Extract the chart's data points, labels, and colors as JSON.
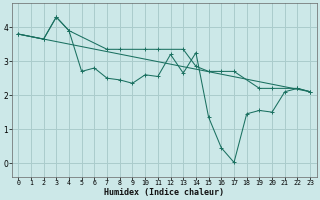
{
  "xlabel": "Humidex (Indice chaleur)",
  "bg_color": "#cce8e8",
  "grid_color": "#aacccc",
  "line_color": "#1a7060",
  "xlim": [
    -0.5,
    23.5
  ],
  "ylim": [
    -0.4,
    4.7
  ],
  "xticks": [
    0,
    1,
    2,
    3,
    4,
    5,
    6,
    7,
    8,
    9,
    10,
    11,
    12,
    13,
    14,
    15,
    16,
    17,
    18,
    19,
    20,
    21,
    22,
    23
  ],
  "yticks": [
    0,
    1,
    2,
    3,
    4
  ],
  "line1_x": [
    0,
    2,
    3,
    4,
    5,
    6,
    7,
    8,
    9,
    10,
    11,
    12,
    13,
    14,
    15,
    16,
    17,
    18,
    19,
    20,
    21,
    22,
    23
  ],
  "line1_y": [
    3.8,
    3.65,
    4.3,
    3.9,
    2.7,
    2.8,
    2.5,
    2.45,
    2.35,
    2.6,
    2.55,
    3.2,
    2.65,
    3.25,
    1.35,
    0.45,
    0.02,
    1.45,
    1.55,
    1.5,
    2.1,
    2.2,
    2.1
  ],
  "line2_x": [
    0,
    2,
    3,
    4,
    4,
    7,
    8,
    10,
    11,
    13,
    14,
    15,
    16,
    17,
    19,
    20,
    22,
    23
  ],
  "line2_y": [
    3.8,
    3.65,
    4.3,
    3.9,
    3.9,
    3.35,
    3.35,
    3.35,
    3.35,
    3.35,
    2.85,
    2.7,
    2.7,
    2.7,
    2.2,
    2.2,
    2.2,
    2.1
  ],
  "line3_x": [
    0,
    23
  ],
  "line3_y": [
    3.8,
    2.1
  ]
}
